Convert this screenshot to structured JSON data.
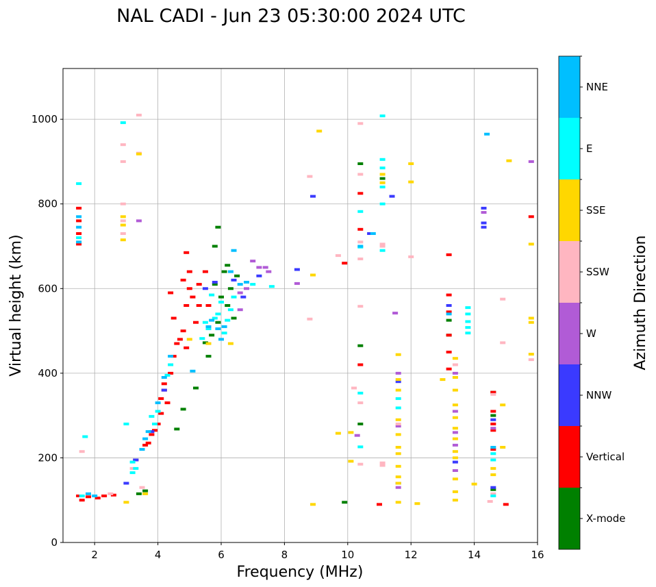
{
  "chart_data": {
    "type": "scatter",
    "title": "NAL CADI - Jun 23 05:30:00 2024 UTC",
    "xlabel": "Frequency (MHz)",
    "ylabel": "Virtual height (km)",
    "xlim": [
      1,
      16
    ],
    "ylim": [
      0,
      1120
    ],
    "xticks": [
      2,
      4,
      6,
      8,
      10,
      12,
      14,
      16
    ],
    "yticks": [
      0,
      200,
      400,
      600,
      800,
      1000
    ],
    "grid": true,
    "colorbar": {
      "label": "Azimuth Direction",
      "categories": [
        {
          "name": "X-mode",
          "color": "#008000"
        },
        {
          "name": "Vertical",
          "color": "#ff0000"
        },
        {
          "name": "NNW",
          "color": "#3a3aff"
        },
        {
          "name": "W",
          "color": "#b15bd6"
        },
        {
          "name": "SSW",
          "color": "#ffb6c1"
        },
        {
          "name": "SSE",
          "color": "#ffd700"
        },
        {
          "name": "E",
          "color": "#00ffff"
        },
        {
          "name": "NNE",
          "color": "#00bfff"
        }
      ]
    },
    "series": [
      {
        "name": "X-mode",
        "points": [
          [
            3.4,
            115
          ],
          [
            3.6,
            122
          ],
          [
            4.6,
            268
          ],
          [
            4.8,
            315
          ],
          [
            5.2,
            365
          ],
          [
            5.5,
            472
          ],
          [
            5.7,
            490
          ],
          [
            5.8,
            610
          ],
          [
            5.9,
            520
          ],
          [
            6.0,
            580
          ],
          [
            6.1,
            640
          ],
          [
            6.2,
            560
          ],
          [
            6.3,
            600
          ],
          [
            6.4,
            530
          ],
          [
            6.5,
            630
          ],
          [
            5.6,
            440
          ],
          [
            5.8,
            700
          ],
          [
            5.9,
            745
          ],
          [
            10.4,
            895
          ],
          [
            10.4,
            465
          ],
          [
            10.4,
            280
          ],
          [
            11.1,
            860
          ],
          [
            13.2,
            525
          ],
          [
            13.2,
            490
          ],
          [
            14.6,
            355
          ],
          [
            14.6,
            300
          ],
          [
            14.6,
            125
          ],
          [
            9.9,
            95
          ],
          [
            6.2,
            655
          ]
        ]
      },
      {
        "name": "Vertical",
        "points": [
          [
            1.5,
            790
          ],
          [
            1.5,
            760
          ],
          [
            1.5,
            730
          ],
          [
            1.5,
            705
          ],
          [
            1.5,
            110
          ],
          [
            1.6,
            100
          ],
          [
            1.8,
            108
          ],
          [
            2.1,
            105
          ],
          [
            2.3,
            110
          ],
          [
            2.6,
            112
          ],
          [
            3.7,
            235
          ],
          [
            3.8,
            255
          ],
          [
            3.9,
            265
          ],
          [
            4.0,
            280
          ],
          [
            4.1,
            305
          ],
          [
            4.1,
            340
          ],
          [
            4.2,
            360
          ],
          [
            4.3,
            330
          ],
          [
            4.4,
            400
          ],
          [
            4.5,
            440
          ],
          [
            4.6,
            470
          ],
          [
            4.7,
            480
          ],
          [
            4.8,
            500
          ],
          [
            4.9,
            460
          ],
          [
            4.9,
            560
          ],
          [
            5.0,
            640
          ],
          [
            5.0,
            600
          ],
          [
            4.8,
            620
          ],
          [
            5.2,
            520
          ],
          [
            5.3,
            610
          ],
          [
            5.5,
            640
          ],
          [
            5.3,
            560
          ],
          [
            5.6,
            560
          ],
          [
            4.9,
            685
          ],
          [
            5.1,
            580
          ],
          [
            4.5,
            530
          ],
          [
            4.4,
            590
          ],
          [
            3.6,
            230
          ],
          [
            3.3,
            195
          ],
          [
            4.2,
            375
          ],
          [
            10.4,
            740
          ],
          [
            10.4,
            825
          ],
          [
            10.4,
            420
          ],
          [
            9.9,
            660
          ],
          [
            11.0,
            90
          ],
          [
            13.2,
            585
          ],
          [
            13.2,
            545
          ],
          [
            13.2,
            490
          ],
          [
            13.2,
            450
          ],
          [
            13.2,
            410
          ],
          [
            13.2,
            680
          ],
          [
            14.6,
            265
          ],
          [
            14.6,
            355
          ],
          [
            14.6,
            310
          ],
          [
            14.6,
            280
          ],
          [
            14.6,
            220
          ],
          [
            15.0,
            90
          ],
          [
            15.8,
            770
          ]
        ]
      },
      {
        "name": "NNW",
        "points": [
          [
            3.0,
            140
          ],
          [
            3.3,
            195
          ],
          [
            3.8,
            262
          ],
          [
            4.2,
            360
          ],
          [
            5.5,
            600
          ],
          [
            5.8,
            615
          ],
          [
            6.4,
            620
          ],
          [
            6.7,
            580
          ],
          [
            7.2,
            630
          ],
          [
            8.4,
            645
          ],
          [
            8.9,
            818
          ],
          [
            10.7,
            730
          ],
          [
            11.4,
            818
          ],
          [
            11.6,
            380
          ],
          [
            11.6,
            140
          ],
          [
            13.2,
            560
          ],
          [
            13.4,
            190
          ],
          [
            14.3,
            790
          ],
          [
            14.3,
            755
          ],
          [
            14.3,
            745
          ],
          [
            14.6,
            130
          ],
          [
            14.6,
            290
          ]
        ]
      },
      {
        "name": "W",
        "points": [
          [
            3.4,
            760
          ],
          [
            6.6,
            550
          ],
          [
            6.8,
            600
          ],
          [
            7.0,
            665
          ],
          [
            7.2,
            650
          ],
          [
            7.4,
            650
          ],
          [
            7.5,
            640
          ],
          [
            6.6,
            590
          ],
          [
            8.4,
            612
          ],
          [
            10.3,
            253
          ],
          [
            11.5,
            542
          ],
          [
            11.6,
            400
          ],
          [
            11.6,
            275
          ],
          [
            11.6,
            130
          ],
          [
            13.4,
            400
          ],
          [
            13.4,
            310
          ],
          [
            13.4,
            260
          ],
          [
            13.4,
            230
          ],
          [
            13.4,
            170
          ],
          [
            14.3,
            780
          ],
          [
            14.6,
            270
          ],
          [
            15.8,
            900
          ]
        ]
      },
      {
        "name": "SSW",
        "points": [
          [
            1.6,
            215
          ],
          [
            2.9,
            940
          ],
          [
            2.9,
            900
          ],
          [
            2.9,
            800
          ],
          [
            2.9,
            760
          ],
          [
            2.9,
            730
          ],
          [
            3.4,
            1010
          ],
          [
            3.4,
            920
          ],
          [
            2.5,
            115
          ],
          [
            3.2,
            175
          ],
          [
            3.5,
            130
          ],
          [
            8.8,
            865
          ],
          [
            8.8,
            528
          ],
          [
            9.7,
            678
          ],
          [
            10.2,
            365
          ],
          [
            10.4,
            990
          ],
          [
            10.4,
            870
          ],
          [
            10.4,
            710
          ],
          [
            10.4,
            670
          ],
          [
            10.4,
            558
          ],
          [
            10.4,
            330
          ],
          [
            10.4,
            185
          ],
          [
            11.1,
            705
          ],
          [
            11.1,
            700
          ],
          [
            11.1,
            188
          ],
          [
            11.1,
            182
          ],
          [
            11.6,
            280
          ],
          [
            12.0,
            675
          ],
          [
            13.4,
            420
          ],
          [
            14.5,
            97
          ],
          [
            14.6,
            350
          ],
          [
            14.6,
            115
          ],
          [
            14.9,
            575
          ],
          [
            14.9,
            472
          ],
          [
            15.8,
            432
          ]
        ]
      },
      {
        "name": "SSE",
        "points": [
          [
            2.9,
            770
          ],
          [
            2.9,
            750
          ],
          [
            2.9,
            715
          ],
          [
            3.4,
            918
          ],
          [
            3.0,
            95
          ],
          [
            3.6,
            115
          ],
          [
            5.0,
            480
          ],
          [
            5.6,
            470
          ],
          [
            6.3,
            470
          ],
          [
            8.9,
            632
          ],
          [
            8.9,
            90
          ],
          [
            9.1,
            972
          ],
          [
            9.7,
            258
          ],
          [
            10.1,
            260
          ],
          [
            10.1,
            192
          ],
          [
            11.1,
            850
          ],
          [
            11.1,
            870
          ],
          [
            11.6,
            444
          ],
          [
            11.6,
            385
          ],
          [
            11.6,
            360
          ],
          [
            11.6,
            290
          ],
          [
            11.6,
            255
          ],
          [
            11.6,
            225
          ],
          [
            11.6,
            210
          ],
          [
            11.6,
            180
          ],
          [
            11.6,
            155
          ],
          [
            11.6,
            140
          ],
          [
            11.6,
            95
          ],
          [
            12.0,
            895
          ],
          [
            12.0,
            852
          ],
          [
            12.2,
            92
          ],
          [
            13.0,
            385
          ],
          [
            13.4,
            435
          ],
          [
            13.4,
            390
          ],
          [
            13.4,
            360
          ],
          [
            13.4,
            325
          ],
          [
            13.4,
            295
          ],
          [
            13.4,
            270
          ],
          [
            13.4,
            245
          ],
          [
            13.4,
            215
          ],
          [
            13.4,
            200
          ],
          [
            13.4,
            150
          ],
          [
            13.4,
            120
          ],
          [
            13.4,
            100
          ],
          [
            14.0,
            138
          ],
          [
            14.6,
            175
          ],
          [
            14.6,
            160
          ],
          [
            14.9,
            325
          ],
          [
            14.9,
            225
          ],
          [
            15.1,
            902
          ],
          [
            15.8,
            705
          ],
          [
            15.8,
            530
          ],
          [
            15.8,
            520
          ],
          [
            15.8,
            445
          ]
        ]
      },
      {
        "name": "E",
        "points": [
          [
            1.5,
            848
          ],
          [
            1.5,
            720
          ],
          [
            1.7,
            250
          ],
          [
            1.6,
            110
          ],
          [
            2.9,
            992
          ],
          [
            3.0,
            280
          ],
          [
            3.2,
            190
          ],
          [
            3.2,
            165
          ],
          [
            3.3,
            175
          ],
          [
            3.8,
            298
          ],
          [
            3.9,
            280
          ],
          [
            4.0,
            310
          ],
          [
            4.3,
            395
          ],
          [
            4.4,
            420
          ],
          [
            5.4,
            482
          ],
          [
            5.5,
            520
          ],
          [
            5.6,
            505
          ],
          [
            5.8,
            530
          ],
          [
            5.9,
            540
          ],
          [
            6.0,
            568
          ],
          [
            6.1,
            495
          ],
          [
            6.2,
            525
          ],
          [
            6.3,
            550
          ],
          [
            5.7,
            585
          ],
          [
            6.4,
            580
          ],
          [
            7.0,
            610
          ],
          [
            7.6,
            605
          ],
          [
            10.4,
            782
          ],
          [
            10.4,
            698
          ],
          [
            10.4,
            353
          ],
          [
            10.4,
            226
          ],
          [
            11.1,
            1008
          ],
          [
            11.1,
            905
          ],
          [
            11.1,
            885
          ],
          [
            11.1,
            840
          ],
          [
            11.1,
            800
          ],
          [
            11.1,
            690
          ],
          [
            11.6,
            340
          ],
          [
            11.6,
            318
          ],
          [
            13.8,
            555
          ],
          [
            13.8,
            540
          ],
          [
            13.8,
            522
          ],
          [
            13.8,
            508
          ],
          [
            13.8,
            495
          ],
          [
            14.6,
            210
          ],
          [
            14.6,
            195
          ],
          [
            14.6,
            110
          ]
        ]
      },
      {
        "name": "NNE",
        "points": [
          [
            1.5,
            770
          ],
          [
            1.5,
            745
          ],
          [
            1.5,
            710
          ],
          [
            1.8,
            115
          ],
          [
            2.0,
            110
          ],
          [
            3.5,
            220
          ],
          [
            3.6,
            245
          ],
          [
            3.7,
            262
          ],
          [
            4.0,
            330
          ],
          [
            4.2,
            390
          ],
          [
            4.4,
            440
          ],
          [
            5.1,
            405
          ],
          [
            5.6,
            510
          ],
          [
            5.7,
            525
          ],
          [
            5.9,
            505
          ],
          [
            6.0,
            480
          ],
          [
            6.1,
            510
          ],
          [
            6.3,
            640
          ],
          [
            6.4,
            690
          ],
          [
            6.6,
            610
          ],
          [
            6.8,
            615
          ],
          [
            10.4,
            700
          ],
          [
            10.8,
            730
          ],
          [
            13.2,
            540
          ],
          [
            14.4,
            965
          ],
          [
            14.6,
            225
          ]
        ]
      }
    ]
  }
}
